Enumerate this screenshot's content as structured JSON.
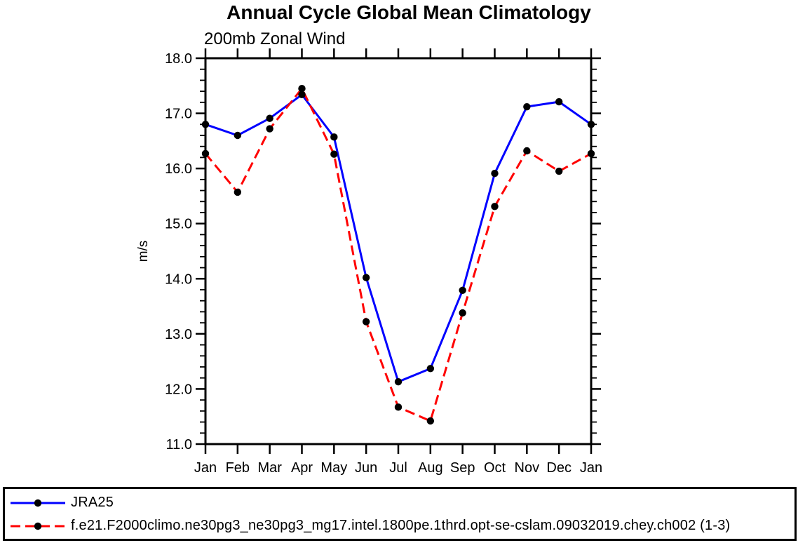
{
  "chart_data": {
    "type": "line",
    "title": "Annual Cycle Global Mean Climatology",
    "subtitle": "200mb Zonal Wind",
    "ylabel": "m/s",
    "xlabel": "",
    "categories": [
      "Jan",
      "Feb",
      "Mar",
      "Apr",
      "May",
      "Jun",
      "Jul",
      "Aug",
      "Sep",
      "Oct",
      "Nov",
      "Dec",
      "Jan"
    ],
    "ylim": [
      11.0,
      18.0
    ],
    "ytick_major_step": 1.0,
    "ytick_minor_step": 0.2,
    "ytick_label_format": "one-decimal",
    "grid": false,
    "legend_position": "bottom-box",
    "axis_color": "#000000",
    "marker": "filled-circle",
    "marker_color": "#000000",
    "series": [
      {
        "name": "JRA25",
        "color": "#0000ff",
        "line_style": "solid",
        "values": [
          16.8,
          16.6,
          16.91,
          17.34,
          16.57,
          14.02,
          12.13,
          12.37,
          13.79,
          15.91,
          17.12,
          17.21,
          16.8
        ]
      },
      {
        "name": "f.e21.F2000climo.ne30pg3_ne30pg3_mg17.intel.1800pe.1thrd.opt-se-cslam.09032019.chey.ch002 (1-3)",
        "color": "#ff0000",
        "line_style": "dashed",
        "values": [
          16.27,
          15.57,
          16.72,
          17.45,
          16.26,
          13.22,
          11.67,
          11.42,
          13.38,
          15.31,
          16.32,
          15.95,
          16.27
        ]
      }
    ]
  }
}
